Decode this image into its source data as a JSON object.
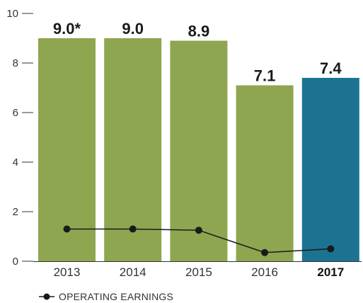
{
  "chart_data": {
    "type": "bar",
    "categories": [
      "2013",
      "2014",
      "2015",
      "2016",
      "2017"
    ],
    "highlight_category": "2017",
    "series": [
      {
        "type": "bar",
        "values": [
          9.0,
          9.0,
          8.9,
          7.1,
          7.4
        ],
        "data_labels": [
          "9.0*",
          "9.0",
          "8.9",
          "7.1",
          "7.4"
        ],
        "colors": [
          "#8ea650",
          "#8ea650",
          "#8ea650",
          "#8ea650",
          "#1b7391"
        ]
      },
      {
        "type": "line",
        "name": "OPERATING EARNINGS",
        "values": [
          1.3,
          1.3,
          1.25,
          0.35,
          0.5
        ],
        "color": "#1a1a1a"
      }
    ],
    "yticks": [
      0,
      2,
      4,
      6,
      8,
      10
    ],
    "ylim": [
      0,
      10
    ],
    "grid": false,
    "legend_position": "bottom-left",
    "title": "",
    "xlabel": "",
    "ylabel": ""
  }
}
